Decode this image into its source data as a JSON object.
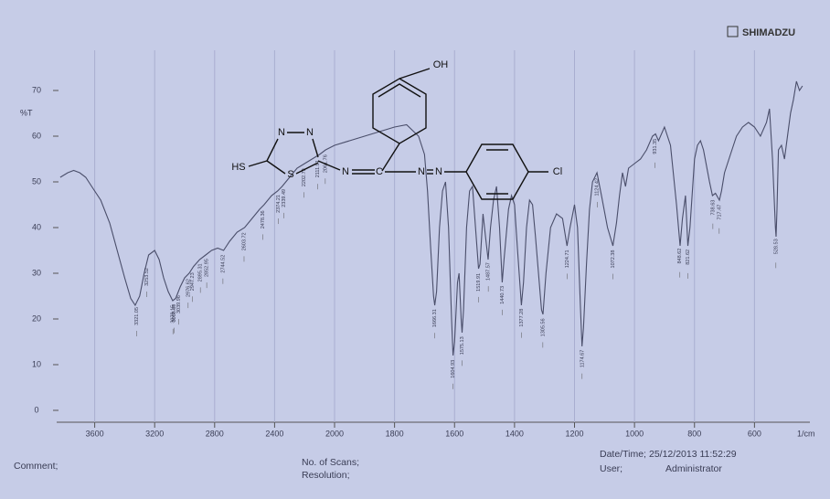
{
  "chart_data": {
    "type": "line",
    "brand": "SHIMADZU",
    "ylabel": "%T",
    "xlabel": "1/cm",
    "xlim": [
      4000,
      400
    ],
    "x_scale_break": 2000,
    "ylim": [
      -3,
      75
    ],
    "xticks": [
      3600,
      3200,
      2800,
      2400,
      2000,
      1800,
      1600,
      1400,
      1200,
      1000,
      800,
      600
    ],
    "yticks": [
      0,
      10,
      20,
      30,
      40,
      50,
      60,
      70
    ],
    "grid": true,
    "series": [
      {
        "color": "#4a4e6a",
        "x": [
          3830,
          3780,
          3740,
          3700,
          3660,
          3620,
          3560,
          3500,
          3450,
          3400,
          3360,
          3330,
          3300,
          3270,
          3240,
          3200,
          3170,
          3140,
          3110,
          3080,
          3060,
          3030,
          3000,
          2970,
          2940,
          2900,
          2860,
          2820,
          2780,
          2740,
          2700,
          2650,
          2600,
          2550,
          2500,
          2470,
          2420,
          2380,
          2350,
          2300,
          2250,
          2200,
          2150,
          2100,
          2060,
          2000,
          1950,
          1900,
          1850,
          1800,
          1760,
          1720,
          1700,
          1690,
          1680,
          1670,
          1666,
          1660,
          1650,
          1640,
          1630,
          1620,
          1610,
          1605,
          1600,
          1590,
          1585,
          1578,
          1575,
          1570,
          1560,
          1550,
          1540,
          1530,
          1520,
          1515,
          1505,
          1495,
          1488,
          1480,
          1470,
          1460,
          1450,
          1441,
          1435,
          1420,
          1410,
          1400,
          1390,
          1377,
          1370,
          1360,
          1350,
          1340,
          1330,
          1310,
          1305,
          1295,
          1280,
          1260,
          1240,
          1225,
          1215,
          1200,
          1190,
          1180,
          1175,
          1170,
          1160,
          1150,
          1140,
          1125,
          1110,
          1090,
          1072,
          1060,
          1050,
          1040,
          1030,
          1020,
          1000,
          980,
          960,
          940,
          930,
          920,
          900,
          880,
          860,
          848,
          840,
          830,
          822,
          815,
          800,
          790,
          780,
          770,
          750,
          740,
          730,
          717,
          710,
          700,
          680,
          660,
          640,
          620,
          600,
          580,
          560,
          550,
          540,
          530,
          528,
          525,
          520,
          510,
          500,
          490,
          480,
          470,
          460,
          450,
          440
        ],
        "values": [
          51,
          52,
          52.5,
          52,
          51,
          49,
          46,
          41,
          35,
          29,
          24.5,
          23,
          25,
          30,
          34,
          35,
          33,
          29,
          26,
          24,
          24.5,
          27,
          29,
          30,
          31.5,
          33,
          34,
          35,
          35.5,
          35,
          37,
          39,
          40,
          42,
          44,
          45,
          47,
          48,
          49,
          51,
          53,
          54,
          55,
          56,
          57,
          58,
          59,
          60,
          61,
          62,
          62.5,
          60,
          56,
          48,
          36,
          25,
          23,
          26,
          40,
          48,
          50,
          40,
          20,
          12,
          15,
          28,
          30,
          20,
          17,
          22,
          40,
          48,
          49,
          40,
          31,
          32,
          43,
          37,
          33,
          40,
          46,
          49,
          40,
          28,
          33,
          44,
          47,
          45,
          35,
          23,
          28,
          40,
          46,
          45,
          38,
          22,
          21,
          30,
          40,
          43,
          42,
          36,
          40,
          45,
          40,
          22,
          14,
          18,
          32,
          44,
          50,
          52,
          47,
          40,
          36,
          41,
          47,
          52,
          49,
          53,
          54,
          55,
          57,
          60,
          60.5,
          59,
          62,
          58,
          45,
          36,
          42,
          47,
          36,
          40,
          55,
          58,
          59,
          57,
          50,
          47,
          47.5,
          46,
          48,
          52,
          56,
          60,
          62,
          63,
          62,
          60,
          63,
          66,
          55,
          40,
          38,
          44,
          57,
          58,
          55,
          60,
          65,
          68,
          72,
          70,
          71
        ]
      }
    ],
    "peaks": [
      3321.05,
      3253.52,
      3078.15,
      3068.89,
      3039.96,
      2976.62,
      2947.23,
      2895.31,
      2852.95,
      2744.52,
      2603.72,
      2478.36,
      2374.21,
      2339.49,
      2202.79,
      2111.91,
      2061.76,
      1666.31,
      1604.93,
      1575.13,
      1519.91,
      1487.57,
      1440.73,
      1377.28,
      1305.56,
      1224.71,
      1174.67,
      1124.42,
      1072.38,
      931.35,
      848.62,
      821.62,
      738.63,
      717.47,
      528.53
    ]
  },
  "structure": {
    "atoms": [
      "OH",
      "HS",
      "N",
      "N",
      "S",
      "N",
      "C",
      "N",
      "N",
      "Cl"
    ]
  },
  "footer": {
    "comment": "Comment;",
    "scans": "No. of Scans;",
    "resolution": "Resolution;",
    "datetime_label": "Date/Time;",
    "datetime": "25/12/2013 11:52:29",
    "user_label": "User;",
    "user": "Administrator"
  }
}
